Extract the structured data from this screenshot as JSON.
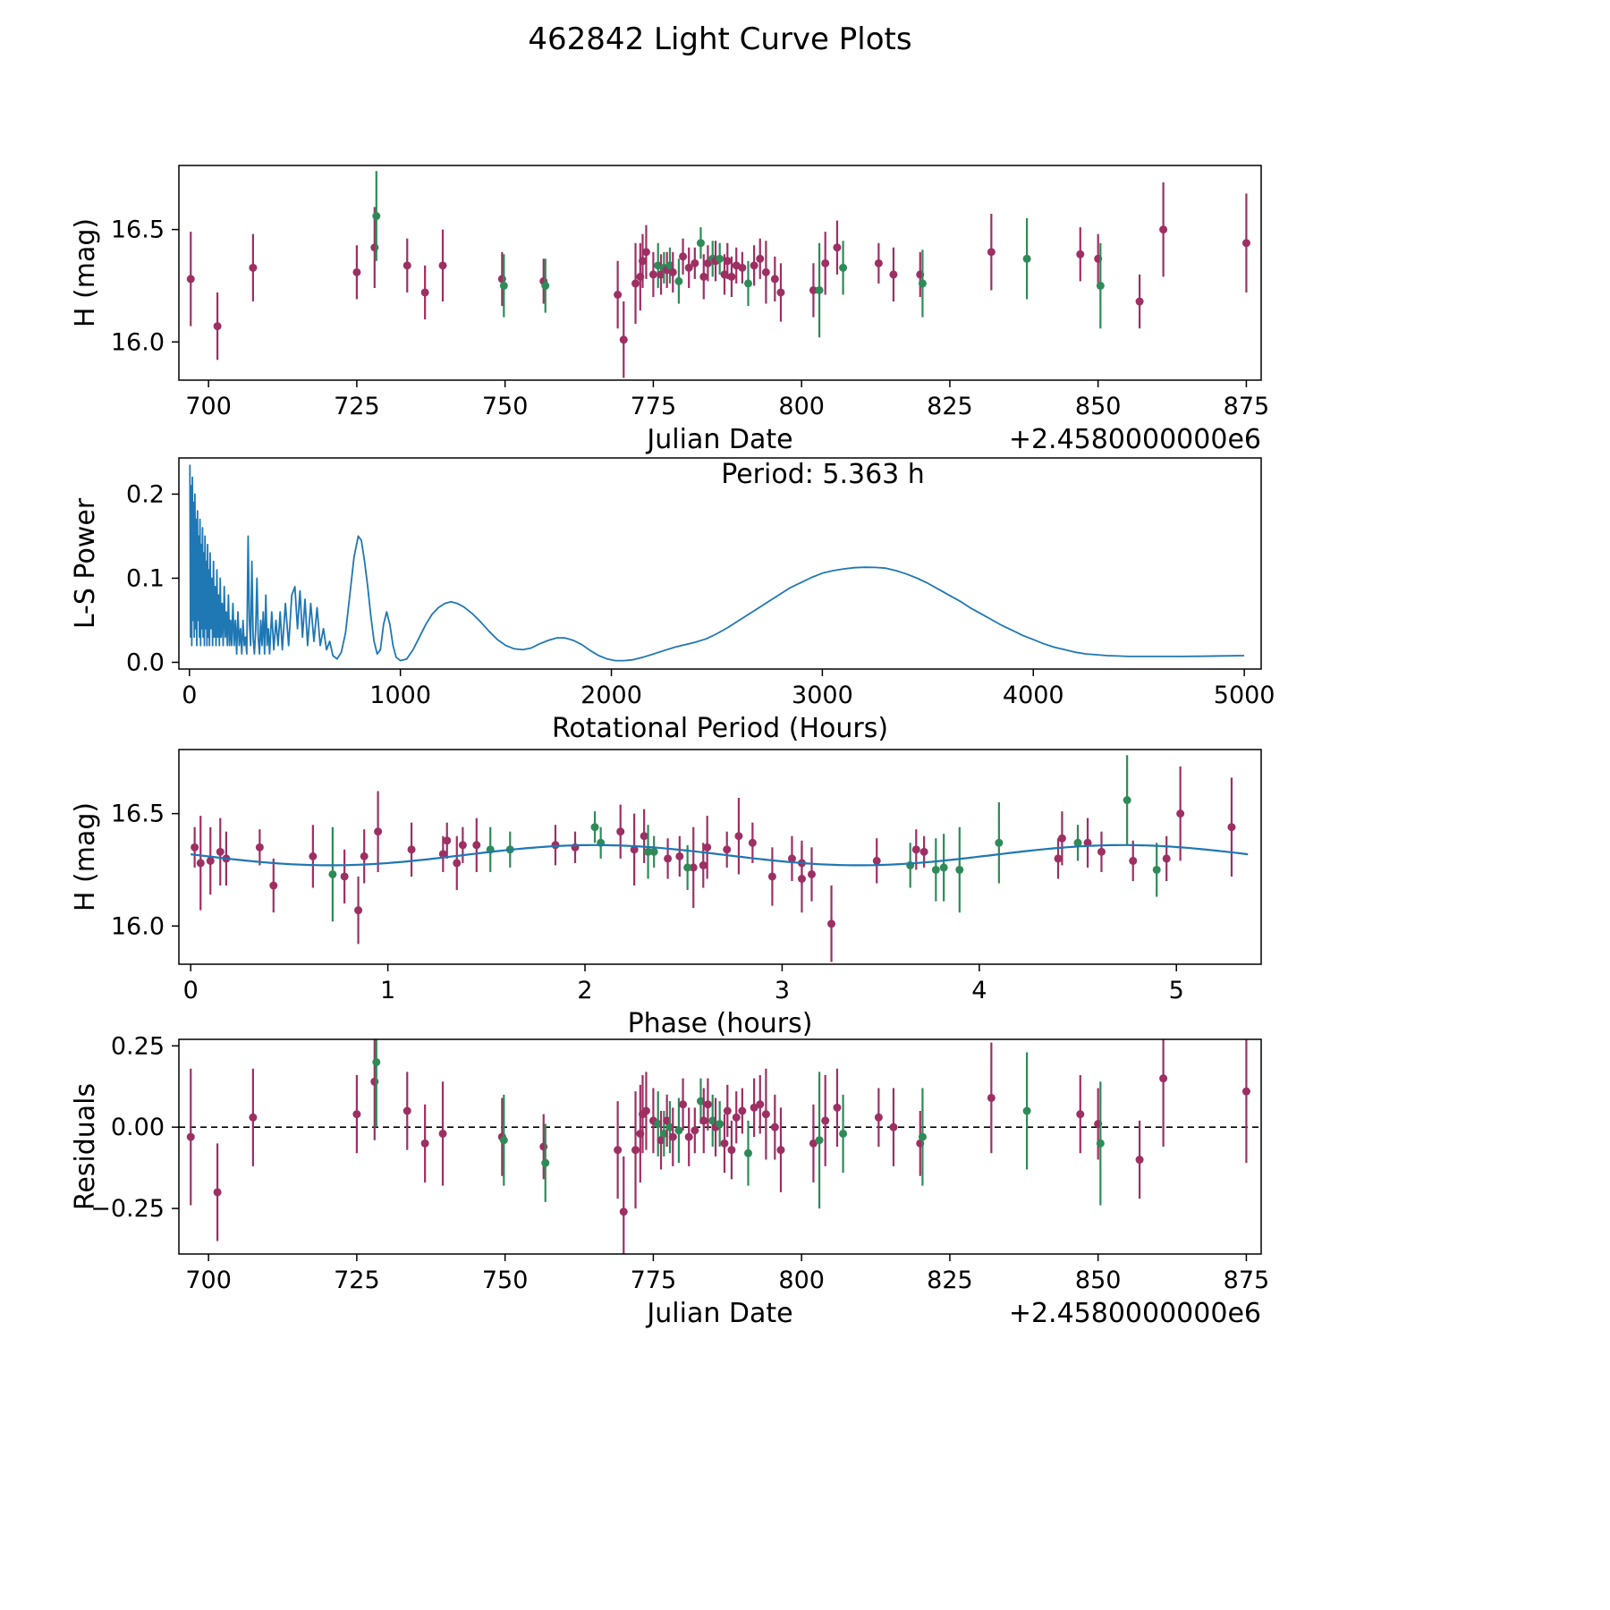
{
  "title": "462842 Light Curve Plots",
  "colors": {
    "purple": "#9d2f63",
    "green": "#2e8b57",
    "line": "#1f77b4",
    "axis": "#000000"
  },
  "point_fields": [
    "jd",
    "h",
    "err",
    "phase",
    "res",
    "color"
  ],
  "points": [
    [
      697.0,
      16.28,
      0.21,
      0.05,
      -0.03,
      "p"
    ],
    [
      701.5,
      16.07,
      0.15,
      0.85,
      -0.2,
      "p"
    ],
    [
      707.5,
      16.33,
      0.15,
      0.15,
      0.03,
      "p"
    ],
    [
      725.0,
      16.31,
      0.12,
      0.88,
      0.04,
      "p"
    ],
    [
      728.0,
      16.42,
      0.18,
      0.95,
      0.14,
      "p"
    ],
    [
      728.3,
      16.56,
      0.2,
      4.75,
      0.2,
      "g"
    ],
    [
      733.5,
      16.34,
      0.12,
      1.12,
      0.05,
      "p"
    ],
    [
      736.5,
      16.22,
      0.12,
      0.78,
      -0.05,
      "p"
    ],
    [
      739.5,
      16.34,
      0.16,
      2.25,
      -0.02,
      "p"
    ],
    [
      749.5,
      16.28,
      0.12,
      1.35,
      -0.03,
      "p"
    ],
    [
      749.8,
      16.25,
      0.14,
      3.78,
      -0.04,
      "g"
    ],
    [
      756.5,
      16.27,
      0.1,
      2.6,
      -0.06,
      "p"
    ],
    [
      756.8,
      16.25,
      0.12,
      4.9,
      -0.11,
      "g"
    ],
    [
      769.0,
      16.21,
      0.15,
      3.1,
      -0.07,
      "p"
    ],
    [
      770.0,
      16.01,
      0.17,
      3.25,
      -0.26,
      "p"
    ],
    [
      772.0,
      16.26,
      0.18,
      2.55,
      -0.07,
      "p"
    ],
    [
      772.8,
      16.29,
      0.15,
      0.1,
      -0.02,
      "p"
    ],
    [
      773.2,
      16.36,
      0.12,
      1.45,
      0.04,
      "p"
    ],
    [
      773.8,
      16.4,
      0.12,
      2.3,
      0.05,
      "p"
    ],
    [
      775.0,
      16.3,
      0.1,
      3.05,
      0.02,
      "p"
    ],
    [
      775.8,
      16.34,
      0.1,
      1.52,
      0.01,
      "g"
    ],
    [
      776.3,
      16.3,
      0.09,
      2.42,
      -0.04,
      "p"
    ],
    [
      776.8,
      16.33,
      0.07,
      2.35,
      -0.02,
      "g"
    ],
    [
      777.3,
      16.32,
      0.08,
      1.28,
      0.02,
      "p"
    ],
    [
      777.8,
      16.34,
      0.08,
      1.62,
      0.0,
      "g"
    ],
    [
      778.3,
      16.31,
      0.09,
      2.48,
      -0.03,
      "p"
    ],
    [
      779.3,
      16.27,
      0.1,
      3.65,
      -0.01,
      "g"
    ],
    [
      780.0,
      16.38,
      0.08,
      1.3,
      0.07,
      "p"
    ],
    [
      781.0,
      16.33,
      0.09,
      4.62,
      -0.03,
      "p"
    ],
    [
      782.0,
      16.35,
      0.07,
      1.95,
      -0.01,
      "p"
    ],
    [
      783.0,
      16.44,
      0.07,
      2.05,
      0.08,
      "g"
    ],
    [
      783.5,
      16.29,
      0.1,
      3.48,
      0.02,
      "p"
    ],
    [
      784.2,
      16.35,
      0.08,
      0.35,
      0.07,
      "p"
    ],
    [
      785.0,
      16.37,
      0.08,
      4.5,
      0.02,
      "g"
    ],
    [
      785.5,
      16.36,
      0.09,
      1.85,
      0.0,
      "p"
    ],
    [
      786.2,
      16.37,
      0.07,
      2.08,
      0.01,
      "g"
    ],
    [
      787.0,
      16.3,
      0.09,
      4.4,
      -0.05,
      "p"
    ],
    [
      787.5,
      16.36,
      0.08,
      1.38,
      0.05,
      "p"
    ],
    [
      788.2,
      16.29,
      0.09,
      4.78,
      -0.07,
      "p"
    ],
    [
      789.0,
      16.34,
      0.08,
      2.72,
      0.03,
      "p"
    ],
    [
      790.0,
      16.33,
      0.07,
      3.72,
      0.05,
      "p"
    ],
    [
      791.0,
      16.26,
      0.1,
      2.52,
      -0.08,
      "g"
    ],
    [
      792.0,
      16.34,
      0.09,
      3.68,
      0.06,
      "p"
    ],
    [
      793.0,
      16.37,
      0.09,
      2.85,
      0.07,
      "p"
    ],
    [
      794.0,
      16.31,
      0.14,
      0.62,
      0.04,
      "p"
    ],
    [
      795.5,
      16.28,
      0.1,
      3.1,
      0.0,
      "p"
    ],
    [
      796.5,
      16.22,
      0.13,
      2.95,
      -0.07,
      "p"
    ],
    [
      802.0,
      16.23,
      0.12,
      3.15,
      -0.05,
      "p"
    ],
    [
      803.0,
      16.23,
      0.21,
      0.72,
      -0.04,
      "g"
    ],
    [
      804.0,
      16.35,
      0.14,
      2.62,
      0.02,
      "p"
    ],
    [
      806.0,
      16.42,
      0.12,
      2.18,
      0.06,
      "p"
    ],
    [
      807.0,
      16.33,
      0.12,
      2.32,
      -0.02,
      "g"
    ],
    [
      813.0,
      16.35,
      0.09,
      0.02,
      0.03,
      "p"
    ],
    [
      815.5,
      16.3,
      0.12,
      0.18,
      0.0,
      "p"
    ],
    [
      820.0,
      16.3,
      0.1,
      4.95,
      -0.05,
      "p"
    ],
    [
      820.4,
      16.26,
      0.15,
      3.82,
      -0.03,
      "g"
    ],
    [
      832.0,
      16.4,
      0.17,
      2.78,
      0.09,
      "p"
    ],
    [
      838.0,
      16.37,
      0.18,
      4.1,
      0.05,
      "g"
    ],
    [
      847.0,
      16.39,
      0.12,
      4.42,
      0.04,
      "p"
    ],
    [
      850.0,
      16.37,
      0.11,
      4.55,
      0.01,
      "p"
    ],
    [
      850.4,
      16.25,
      0.19,
      3.9,
      -0.05,
      "g"
    ],
    [
      857.0,
      16.18,
      0.12,
      0.42,
      -0.1,
      "p"
    ],
    [
      861.0,
      16.5,
      0.21,
      5.02,
      0.15,
      "p"
    ],
    [
      875.0,
      16.44,
      0.22,
      5.28,
      0.11,
      "p"
    ]
  ],
  "chart_data": [
    {
      "type": "scatter",
      "xlabel": "Julian Date",
      "ylabel": "H (mag)",
      "offset_label": "+2.4580000000e6",
      "x": "jd",
      "y": "h",
      "xlim": [
        695,
        877.5
      ],
      "ylim": [
        15.83,
        16.785
      ],
      "xtick_vals": [
        700,
        725,
        750,
        775,
        800,
        825,
        850,
        875
      ],
      "xtick_labels": [
        "700",
        "725",
        "750",
        "775",
        "800",
        "825",
        "850",
        "875"
      ],
      "ytick_vals": [
        16.0,
        16.5
      ],
      "ytick_labels": [
        "16.0",
        "16.5"
      ]
    },
    {
      "type": "line",
      "xlabel": "Rotational Period (Hours)",
      "ylabel": "L-S Power",
      "annotation": "Period: 5.363 h",
      "xlim": [
        -50,
        5080
      ],
      "ylim": [
        -0.008,
        0.243
      ],
      "xtick_vals": [
        0,
        1000,
        2000,
        3000,
        4000,
        5000
      ],
      "xtick_labels": [
        "0",
        "1000",
        "2000",
        "3000",
        "4000",
        "5000"
      ],
      "ytick_vals": [
        0.0,
        0.1,
        0.2
      ],
      "ytick_labels": [
        "0.0",
        "0.1",
        "0.2"
      ],
      "line": [
        [
          2,
          0.235
        ],
        [
          5,
          0.03
        ],
        [
          8,
          0.21
        ],
        [
          11,
          0.02
        ],
        [
          14,
          0.22
        ],
        [
          17,
          0.05
        ],
        [
          20,
          0.19
        ],
        [
          23,
          0.03
        ],
        [
          26,
          0.2
        ],
        [
          29,
          0.04
        ],
        [
          32,
          0.17
        ],
        [
          35,
          0.02
        ],
        [
          38,
          0.18
        ],
        [
          41,
          0.05
        ],
        [
          44,
          0.15
        ],
        [
          47,
          0.03
        ],
        [
          50,
          0.17
        ],
        [
          53,
          0.02
        ],
        [
          56,
          0.14
        ],
        [
          59,
          0.04
        ],
        [
          62,
          0.16
        ],
        [
          65,
          0.03
        ],
        [
          68,
          0.13
        ],
        [
          71,
          0.02
        ],
        [
          74,
          0.15
        ],
        [
          77,
          0.04
        ],
        [
          80,
          0.12
        ],
        [
          83,
          0.02
        ],
        [
          86,
          0.14
        ],
        [
          89,
          0.03
        ],
        [
          92,
          0.11
        ],
        [
          95,
          0.02
        ],
        [
          98,
          0.13
        ],
        [
          102,
          0.04
        ],
        [
          106,
          0.1
        ],
        [
          110,
          0.02
        ],
        [
          114,
          0.12
        ],
        [
          118,
          0.03
        ],
        [
          122,
          0.09
        ],
        [
          126,
          0.02
        ],
        [
          130,
          0.11
        ],
        [
          134,
          0.03
        ],
        [
          138,
          0.08
        ],
        [
          142,
          0.02
        ],
        [
          146,
          0.1
        ],
        [
          150,
          0.03
        ],
        [
          155,
          0.07
        ],
        [
          160,
          0.02
        ],
        [
          165,
          0.09
        ],
        [
          170,
          0.03
        ],
        [
          175,
          0.06
        ],
        [
          180,
          0.02
        ],
        [
          185,
          0.08
        ],
        [
          190,
          0.02
        ],
        [
          195,
          0.05
        ],
        [
          200,
          0.02
        ],
        [
          206,
          0.07
        ],
        [
          212,
          0.02
        ],
        [
          218,
          0.05
        ],
        [
          224,
          0.01
        ],
        [
          230,
          0.06
        ],
        [
          236,
          0.02
        ],
        [
          242,
          0.04
        ],
        [
          248,
          0.01
        ],
        [
          254,
          0.05
        ],
        [
          260,
          0.02
        ],
        [
          266,
          0.03
        ],
        [
          272,
          0.01
        ],
        [
          278,
          0.15
        ],
        [
          284,
          0.05
        ],
        [
          290,
          0.02
        ],
        [
          296,
          0.12
        ],
        [
          302,
          0.03
        ],
        [
          308,
          0.01
        ],
        [
          314,
          0.04
        ],
        [
          320,
          0.1
        ],
        [
          326,
          0.03
        ],
        [
          332,
          0.01
        ],
        [
          338,
          0.05
        ],
        [
          344,
          0.02
        ],
        [
          350,
          0.06
        ],
        [
          356,
          0.01
        ],
        [
          362,
          0.08
        ],
        [
          368,
          0.02
        ],
        [
          374,
          0.04
        ],
        [
          380,
          0.01
        ],
        [
          390,
          0.06
        ],
        [
          400,
          0.015
        ],
        [
          410,
          0.05
        ],
        [
          420,
          0.02
        ],
        [
          430,
          0.06
        ],
        [
          440,
          0.015
        ],
        [
          455,
          0.07
        ],
        [
          470,
          0.02
        ],
        [
          485,
          0.08
        ],
        [
          500,
          0.09
        ],
        [
          512,
          0.04
        ],
        [
          524,
          0.085
        ],
        [
          536,
          0.03
        ],
        [
          548,
          0.075
        ],
        [
          560,
          0.02
        ],
        [
          575,
          0.07
        ],
        [
          590,
          0.025
        ],
        [
          605,
          0.065
        ],
        [
          620,
          0.02
        ],
        [
          635,
          0.04
        ],
        [
          650,
          0.015
        ],
        [
          665,
          0.025
        ],
        [
          680,
          0.008
        ],
        [
          700,
          0.004
        ],
        [
          720,
          0.012
        ],
        [
          740,
          0.035
        ],
        [
          760,
          0.08
        ],
        [
          780,
          0.125
        ],
        [
          800,
          0.15
        ],
        [
          815,
          0.145
        ],
        [
          830,
          0.12
        ],
        [
          845,
          0.09
        ],
        [
          860,
          0.055
        ],
        [
          875,
          0.025
        ],
        [
          890,
          0.01
        ],
        [
          905,
          0.015
        ],
        [
          920,
          0.045
        ],
        [
          935,
          0.06
        ],
        [
          950,
          0.045
        ],
        [
          965,
          0.02
        ],
        [
          980,
          0.006
        ],
        [
          1000,
          0.002
        ],
        [
          1030,
          0.004
        ],
        [
          1060,
          0.015
        ],
        [
          1090,
          0.03
        ],
        [
          1120,
          0.045
        ],
        [
          1150,
          0.057
        ],
        [
          1180,
          0.065
        ],
        [
          1210,
          0.07
        ],
        [
          1240,
          0.072
        ],
        [
          1270,
          0.07
        ],
        [
          1300,
          0.066
        ],
        [
          1340,
          0.058
        ],
        [
          1380,
          0.048
        ],
        [
          1420,
          0.037
        ],
        [
          1460,
          0.027
        ],
        [
          1500,
          0.02
        ],
        [
          1540,
          0.016
        ],
        [
          1580,
          0.015
        ],
        [
          1620,
          0.017
        ],
        [
          1660,
          0.022
        ],
        [
          1700,
          0.026
        ],
        [
          1740,
          0.029
        ],
        [
          1780,
          0.029
        ],
        [
          1820,
          0.026
        ],
        [
          1860,
          0.021
        ],
        [
          1900,
          0.014
        ],
        [
          1940,
          0.008
        ],
        [
          1980,
          0.004
        ],
        [
          2020,
          0.002
        ],
        [
          2060,
          0.002
        ],
        [
          2100,
          0.003
        ],
        [
          2150,
          0.006
        ],
        [
          2200,
          0.01
        ],
        [
          2250,
          0.014
        ],
        [
          2300,
          0.018
        ],
        [
          2350,
          0.021
        ],
        [
          2400,
          0.024
        ],
        [
          2450,
          0.028
        ],
        [
          2500,
          0.034
        ],
        [
          2550,
          0.041
        ],
        [
          2600,
          0.049
        ],
        [
          2650,
          0.057
        ],
        [
          2700,
          0.065
        ],
        [
          2750,
          0.073
        ],
        [
          2800,
          0.081
        ],
        [
          2850,
          0.089
        ],
        [
          2900,
          0.095
        ],
        [
          2950,
          0.101
        ],
        [
          3000,
          0.106
        ],
        [
          3050,
          0.109
        ],
        [
          3100,
          0.111
        ],
        [
          3150,
          0.1125
        ],
        [
          3200,
          0.113
        ],
        [
          3250,
          0.1128
        ],
        [
          3300,
          0.112
        ],
        [
          3350,
          0.109
        ],
        [
          3400,
          0.105
        ],
        [
          3450,
          0.1
        ],
        [
          3500,
          0.094
        ],
        [
          3550,
          0.087
        ],
        [
          3600,
          0.08
        ],
        [
          3650,
          0.073
        ],
        [
          3700,
          0.065
        ],
        [
          3750,
          0.058
        ],
        [
          3800,
          0.051
        ],
        [
          3850,
          0.044
        ],
        [
          3900,
          0.038
        ],
        [
          3950,
          0.032
        ],
        [
          4000,
          0.027
        ],
        [
          4050,
          0.022
        ],
        [
          4100,
          0.018
        ],
        [
          4150,
          0.015
        ],
        [
          4200,
          0.012
        ],
        [
          4250,
          0.01
        ],
        [
          4300,
          0.009
        ],
        [
          4350,
          0.008
        ],
        [
          4400,
          0.0075
        ],
        [
          4450,
          0.007
        ],
        [
          4500,
          0.007
        ],
        [
          4600,
          0.007
        ],
        [
          4700,
          0.007
        ],
        [
          4800,
          0.0072
        ],
        [
          4900,
          0.0076
        ],
        [
          5000,
          0.008
        ]
      ]
    },
    {
      "type": "scatter",
      "xlabel": "Phase (hours)",
      "ylabel": "H (mag)",
      "x": "phase",
      "y": "h",
      "xlim": [
        -0.06,
        5.43
      ],
      "ylim": [
        15.83,
        16.785
      ],
      "xtick_vals": [
        0,
        1,
        2,
        3,
        4,
        5
      ],
      "xtick_labels": [
        "0",
        "1",
        "2",
        "3",
        "4",
        "5"
      ],
      "ytick_vals": [
        16.0,
        16.5
      ],
      "ytick_labels": [
        "16.0",
        "16.5"
      ],
      "fit": {
        "baseline": 16.315,
        "amplitude": 0.045,
        "period": 2.6815,
        "phase_of_max": 2.05,
        "xmin": 0,
        "xmax": 5.363
      }
    },
    {
      "type": "scatter",
      "xlabel": "Julian Date",
      "ylabel": "Residuals",
      "offset_label": "+2.4580000000e6",
      "x": "jd",
      "y": "res",
      "zero_line": true,
      "xlim": [
        695,
        877.5
      ],
      "ylim": [
        -0.39,
        0.27
      ],
      "xtick_vals": [
        700,
        725,
        750,
        775,
        800,
        825,
        850,
        875
      ],
      "xtick_labels": [
        "700",
        "725",
        "750",
        "775",
        "800",
        "825",
        "850",
        "875"
      ],
      "ytick_vals": [
        -0.25,
        0.0,
        0.25
      ],
      "ytick_labels": [
        "−0.25",
        "0.00",
        "0.25"
      ]
    }
  ]
}
